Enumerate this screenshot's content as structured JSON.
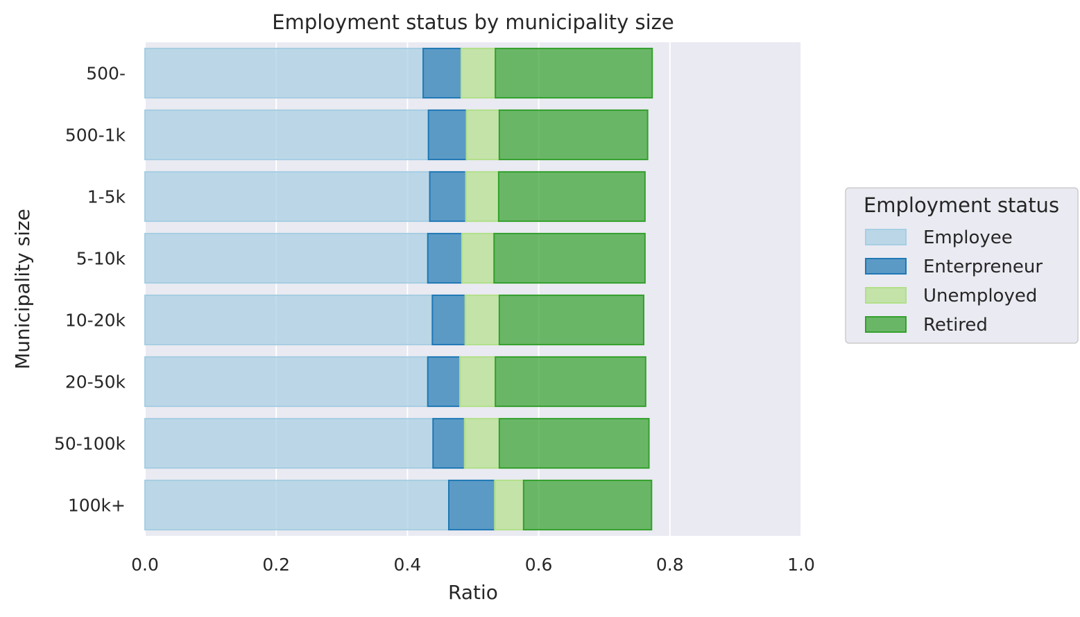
{
  "chart_data": {
    "type": "bar",
    "orientation": "horizontal",
    "stacked": true,
    "title": "Employment status by municipality size",
    "xlabel": "Ratio",
    "ylabel": "Municipality size",
    "xlim": [
      0,
      1
    ],
    "xticks": [
      "0.0",
      "0.2",
      "0.4",
      "0.6",
      "0.8",
      "1.0"
    ],
    "grid": true,
    "legend": {
      "title": "Employment status",
      "placement": "center-right outside"
    },
    "categories": [
      "500-",
      "500-1k",
      "1-5k",
      "5-10k",
      "10-20k",
      "20-50k",
      "50-100k",
      "100k+"
    ],
    "series": [
      {
        "name": "Employee",
        "fill": "#a6cee3",
        "stroke": "#a6cee3",
        "fill_opacity": 0.7,
        "values": [
          0.424,
          0.432,
          0.434,
          0.431,
          0.438,
          0.431,
          0.439,
          0.463
        ]
      },
      {
        "name": "Enterpreneur",
        "fill": "#1f78b4",
        "stroke": "#1f78b4",
        "fill_opacity": 0.7,
        "values": [
          0.058,
          0.058,
          0.055,
          0.052,
          0.05,
          0.049,
          0.048,
          0.07
        ]
      },
      {
        "name": "Unemployed",
        "fill": "#b2df8a",
        "stroke": "#b2df8a",
        "fill_opacity": 0.7,
        "values": [
          0.052,
          0.05,
          0.05,
          0.049,
          0.052,
          0.054,
          0.053,
          0.044
        ]
      },
      {
        "name": "Retired",
        "fill": "#33a02c",
        "stroke": "#33a02c",
        "fill_opacity": 0.7,
        "values": [
          0.239,
          0.226,
          0.223,
          0.23,
          0.22,
          0.229,
          0.228,
          0.195
        ]
      }
    ]
  }
}
